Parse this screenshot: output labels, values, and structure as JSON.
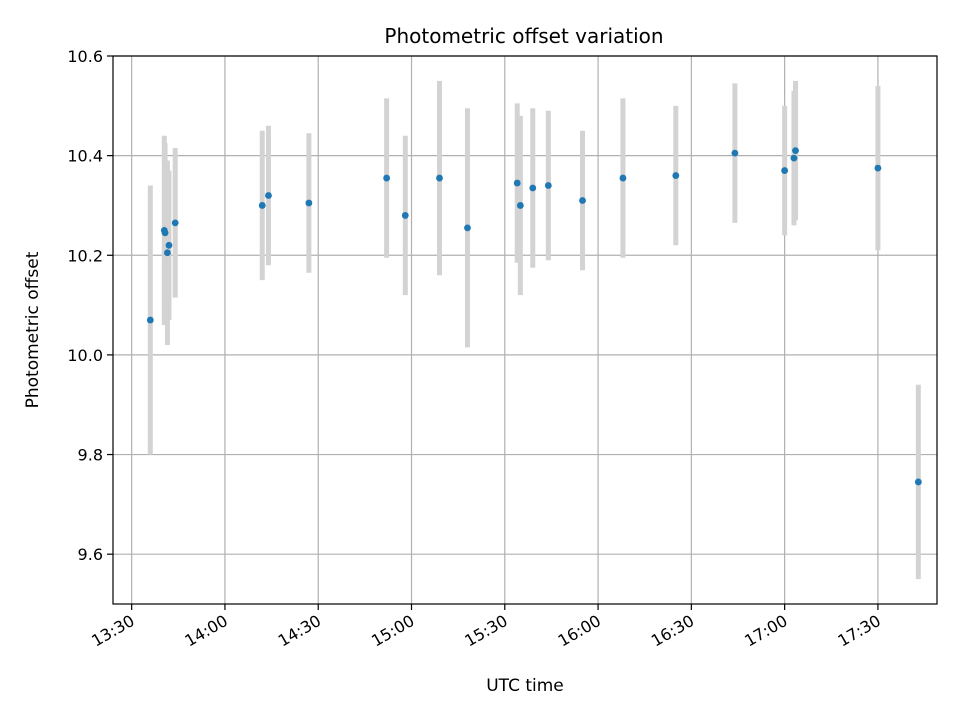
{
  "chart_data": {
    "type": "scatter",
    "title": "Photometric offset variation",
    "xlabel": "UTC time",
    "ylabel": "Photometric offset",
    "x_axis_type": "time",
    "xlim": [
      "13:24",
      "17:49"
    ],
    "ylim": [
      9.5,
      10.6
    ],
    "x_ticks": [
      "13:30",
      "14:00",
      "14:30",
      "15:00",
      "15:30",
      "16:00",
      "16:30",
      "17:00",
      "17:30"
    ],
    "y_ticks": [
      9.6,
      9.8,
      10.0,
      10.2,
      10.4,
      10.6
    ],
    "y_tick_labels": [
      "9.6",
      "9.8",
      "10.0",
      "10.2",
      "10.4",
      "10.6"
    ],
    "grid": true,
    "point_color": "#1f77b4",
    "errorbar_color": "#d3d3d3",
    "points": [
      {
        "t": "13:36",
        "y": 10.07,
        "err": 0.27
      },
      {
        "t": "13:40:30",
        "y": 10.25,
        "err": 0.19
      },
      {
        "t": "13:40:45",
        "y": 10.245,
        "err": 0.18
      },
      {
        "t": "13:41:30",
        "y": 10.205,
        "err": 0.185
      },
      {
        "t": "13:42:00",
        "y": 10.22,
        "err": 0.15
      },
      {
        "t": "13:44",
        "y": 10.265,
        "err": 0.15
      },
      {
        "t": "14:12",
        "y": 10.3,
        "err": 0.15
      },
      {
        "t": "14:14",
        "y": 10.32,
        "err": 0.14
      },
      {
        "t": "14:27",
        "y": 10.305,
        "err": 0.14
      },
      {
        "t": "14:52",
        "y": 10.355,
        "err": 0.16
      },
      {
        "t": "14:58",
        "y": 10.28,
        "err": 0.16
      },
      {
        "t": "15:09",
        "y": 10.355,
        "err": 0.195
      },
      {
        "t": "15:18",
        "y": 10.255,
        "err": 0.24
      },
      {
        "t": "15:34",
        "y": 10.345,
        "err": 0.16
      },
      {
        "t": "15:35",
        "y": 10.3,
        "err": 0.18
      },
      {
        "t": "15:39",
        "y": 10.335,
        "err": 0.16
      },
      {
        "t": "15:44",
        "y": 10.34,
        "err": 0.15
      },
      {
        "t": "15:55",
        "y": 10.31,
        "err": 0.14
      },
      {
        "t": "16:08",
        "y": 10.355,
        "err": 0.16
      },
      {
        "t": "16:25",
        "y": 10.36,
        "err": 0.14
      },
      {
        "t": "16:44",
        "y": 10.405,
        "err": 0.14
      },
      {
        "t": "17:00",
        "y": 10.37,
        "err": 0.13
      },
      {
        "t": "17:03",
        "y": 10.395,
        "err": 0.135
      },
      {
        "t": "17:03:30",
        "y": 10.41,
        "err": 0.14
      },
      {
        "t": "17:30",
        "y": 10.375,
        "err": 0.165
      },
      {
        "t": "17:43",
        "y": 9.745,
        "err": 0.195
      }
    ]
  }
}
